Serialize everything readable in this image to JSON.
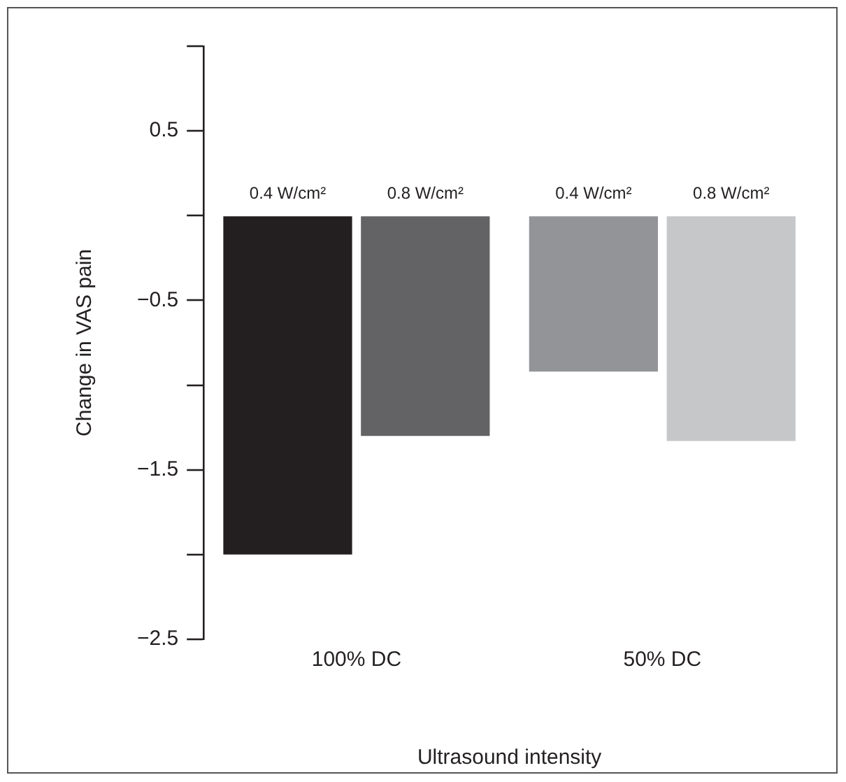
{
  "chart_data": {
    "type": "bar",
    "xlabel": "Ultrasound intensity",
    "ylabel": "Change in VAS pain",
    "categories": [
      "100% DC",
      "50% DC"
    ],
    "series": [
      {
        "name": "0.4 W/cm²",
        "colors": [
          "#231f20",
          "#939497"
        ],
        "values": [
          -2.0,
          -0.92
        ]
      },
      {
        "name": "0.8 W/cm²",
        "colors": [
          "#636365",
          "#c6c7c9"
        ],
        "values": [
          -1.3,
          -1.33
        ]
      }
    ],
    "ylim": [
      -2.5,
      1.0
    ],
    "yticks": [
      {
        "value": 1.0,
        "label": null
      },
      0.5,
      {
        "value": 0,
        "label": null
      },
      -0.5,
      {
        "value": -1.0,
        "label": null
      },
      -1.5,
      {
        "value": -2.0,
        "label": null
      },
      -2.5
    ],
    "grid": false,
    "legend": false
  }
}
